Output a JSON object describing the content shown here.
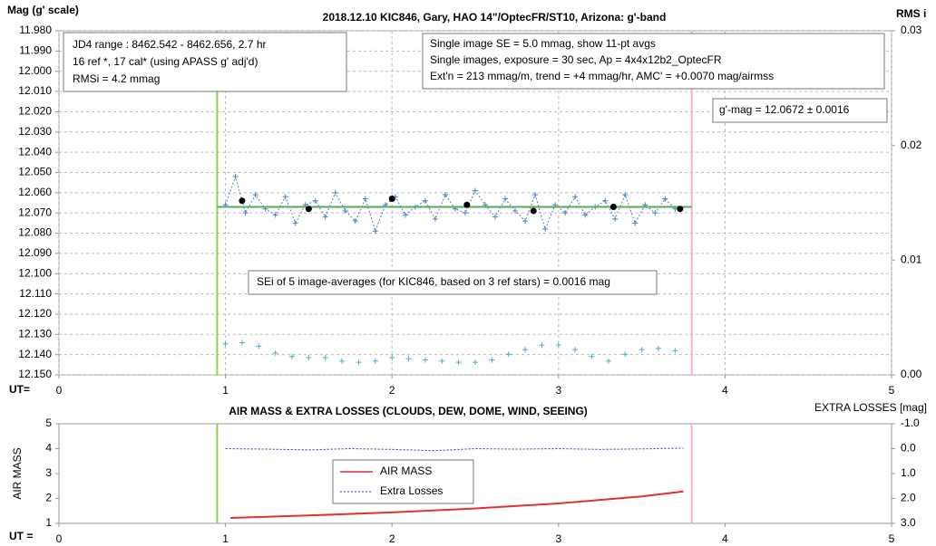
{
  "chart_data": [
    {
      "type": "line",
      "title": "2018.12.10 KIC846, Gary, HAO 14\"/OptecFR/ST10, Arizona: g'-band",
      "y_label": "Mag (g' scale)",
      "y2_label": "RMS i",
      "x_label": "UT=",
      "xlim": [
        0,
        5
      ],
      "xticks": [
        0,
        1,
        2,
        3,
        4,
        5
      ],
      "ylim": [
        12.15,
        11.98
      ],
      "yticks": [
        {
          "value": 11.98,
          "label": "11.980"
        },
        {
          "value": 11.99,
          "label": "11.990"
        },
        {
          "value": 12.0,
          "label": "12.000"
        },
        {
          "value": 12.01,
          "label": "12.010"
        },
        {
          "value": 12.02,
          "label": "12.020"
        },
        {
          "value": 12.03,
          "label": "12.030"
        },
        {
          "value": 12.04,
          "label": "12.040"
        },
        {
          "value": 12.05,
          "label": "12.050"
        },
        {
          "value": 12.06,
          "label": "12.060"
        },
        {
          "value": 12.07,
          "label": "12.070"
        },
        {
          "value": 12.08,
          "label": "12.080"
        },
        {
          "value": 12.09,
          "label": "12.090"
        },
        {
          "value": 12.1,
          "label": "12.100"
        },
        {
          "value": 12.11,
          "label": "12.110"
        },
        {
          "value": 12.12,
          "label": "12.120"
        },
        {
          "value": 12.13,
          "label": "12.130"
        },
        {
          "value": 12.14,
          "label": "12.140"
        },
        {
          "value": 12.15,
          "label": "12.150"
        }
      ],
      "y2lim": [
        0,
        0.03
      ],
      "y2ticks": [
        {
          "value": 0,
          "label": "0.00"
        },
        {
          "value": 0.01,
          "label": "0.01"
        },
        {
          "value": 0.02,
          "label": "0.02"
        },
        {
          "value": 0.03,
          "label": "0.03"
        }
      ],
      "grid": true,
      "vlines": [
        {
          "x": 0.95,
          "color": "#92d050"
        },
        {
          "x": 3.8,
          "color": "#f4b6b6"
        }
      ],
      "annotations": [
        {
          "lines": [
            "JD4 range : 8462.542 - 8462.656,  2.7  hr",
            "16 ref *, 17 cal* (using APASS g' adj'd)",
            "RMSi = 4.2 mmag"
          ]
        },
        {
          "lines": [
            "Single image SE = 5.0 mmag, show  11-pt avgs",
            "Single images, exposure = 30 sec, Ap = 4x4x12b2_OptecFR",
            "Ext'n = 213 mmag/m, trend =  +4 mmag/hr, AMC' = +0.0070 mag/airmss"
          ]
        },
        {
          "lines": [
            "g'-mag = 12.0672 ± 0.0016"
          ]
        },
        {
          "lines": [
            "SEi of 5 image-averages (for KIC846, based on 3 ref stars) = 0.0016 mag"
          ]
        }
      ],
      "series": [
        {
          "color": "#4f81bd",
          "line": "dotted",
          "marker": "plus",
          "x": [
            1.0,
            1.06,
            1.12,
            1.18,
            1.24,
            1.3,
            1.36,
            1.42,
            1.48,
            1.54,
            1.6,
            1.66,
            1.72,
            1.78,
            1.84,
            1.9,
            1.96,
            2.02,
            2.08,
            2.14,
            2.2,
            2.26,
            2.32,
            2.38,
            2.44,
            2.5,
            2.56,
            2.62,
            2.68,
            2.74,
            2.8,
            2.86,
            2.92,
            2.98,
            3.04,
            3.1,
            3.16,
            3.22,
            3.28,
            3.34,
            3.4,
            3.46,
            3.52,
            3.58,
            3.64,
            3.7
          ],
          "values": [
            12.066,
            12.052,
            12.07,
            12.061,
            12.068,
            12.071,
            12.062,
            12.075,
            12.066,
            12.064,
            12.072,
            12.06,
            12.069,
            12.074,
            12.063,
            12.079,
            12.066,
            12.062,
            12.071,
            12.067,
            12.064,
            12.073,
            12.061,
            12.068,
            12.07,
            12.059,
            12.066,
            12.072,
            12.063,
            12.069,
            12.074,
            12.061,
            12.078,
            12.066,
            12.07,
            12.062,
            12.071,
            12.067,
            12.064,
            12.073,
            12.061,
            12.075,
            12.066,
            12.07,
            12.063,
            12.068
          ]
        },
        {
          "color": "#5ba85b",
          "line": "solid",
          "marker": "none",
          "x": [
            0.95,
            3.8
          ],
          "values": [
            12.067,
            12.067
          ]
        },
        {
          "color": "#000000",
          "line": "none",
          "marker": "dot",
          "x": [
            1.1,
            1.5,
            2.0,
            2.45,
            2.85,
            3.33,
            3.73
          ],
          "values": [
            12.064,
            12.068,
            12.063,
            12.066,
            12.069,
            12.067,
            12.068
          ]
        },
        {
          "color": "#4bacc6",
          "line": "none",
          "marker": "plus",
          "axis": "y2",
          "x": [
            1.0,
            1.1,
            1.2,
            1.3,
            1.4,
            1.5,
            1.6,
            1.7,
            1.8,
            1.9,
            2.0,
            2.1,
            2.2,
            2.3,
            2.4,
            2.5,
            2.6,
            2.7,
            2.8,
            2.9,
            3.0,
            3.1,
            3.2,
            3.3,
            3.4,
            3.5,
            3.6,
            3.7
          ],
          "values": [
            0.0027,
            0.0028,
            0.0025,
            0.0019,
            0.0016,
            0.0015,
            0.0015,
            0.0012,
            0.0011,
            0.0012,
            0.0015,
            0.0014,
            0.0013,
            0.0012,
            0.0011,
            0.0011,
            0.0013,
            0.0018,
            0.0022,
            0.0026,
            0.0026,
            0.0022,
            0.0016,
            0.0012,
            0.0018,
            0.0022,
            0.0023,
            0.0021
          ]
        }
      ]
    },
    {
      "type": "line",
      "title": "AIR MASS & EXTRA LOSSES (CLOUDS, DEW, DOME, WIND, SEEING)",
      "y_label": "AIR MASS",
      "y2_label": "EXTRA LOSSES [mag]",
      "x_label": "UT =",
      "xlim": [
        0,
        5
      ],
      "xticks": [
        0,
        1,
        2,
        3,
        4,
        5
      ],
      "ylim": [
        1,
        5
      ],
      "yticks": [
        1,
        2,
        3,
        4,
        5
      ],
      "y2lim": [
        3.0,
        -1.0
      ],
      "y2ticks": [
        {
          "value": -1.0,
          "label": "-1.0"
        },
        {
          "value": 0.0,
          "label": "0.0"
        },
        {
          "value": 1.0,
          "label": "1.0"
        },
        {
          "value": 2.0,
          "label": "2.0"
        },
        {
          "value": 3.0,
          "label": "3.0"
        }
      ],
      "grid": false,
      "vlines": [
        {
          "x": 0.95,
          "color": "#92d050"
        },
        {
          "x": 3.8,
          "color": "#f4b6b6"
        }
      ],
      "series": [
        {
          "name": "AIR MASS",
          "color": "#e03030",
          "line": "solid",
          "marker": "none",
          "x": [
            1.03,
            1.5,
            2.0,
            2.5,
            3.0,
            3.5,
            3.75
          ],
          "values": [
            1.22,
            1.32,
            1.44,
            1.6,
            1.8,
            2.08,
            2.28
          ]
        },
        {
          "name": "Extra Losses",
          "color": "#1f3fa0",
          "line": "dotted",
          "marker": "none",
          "axis": "y2",
          "x": [
            1.0,
            1.25,
            1.5,
            1.75,
            2.0,
            2.25,
            2.5,
            2.75,
            3.0,
            3.25,
            3.5,
            3.75
          ],
          "values": [
            0.0,
            0.02,
            0.05,
            0.0,
            0.03,
            0.08,
            0.0,
            0.02,
            0.0,
            0.03,
            0.01,
            -0.02
          ]
        }
      ]
    }
  ]
}
